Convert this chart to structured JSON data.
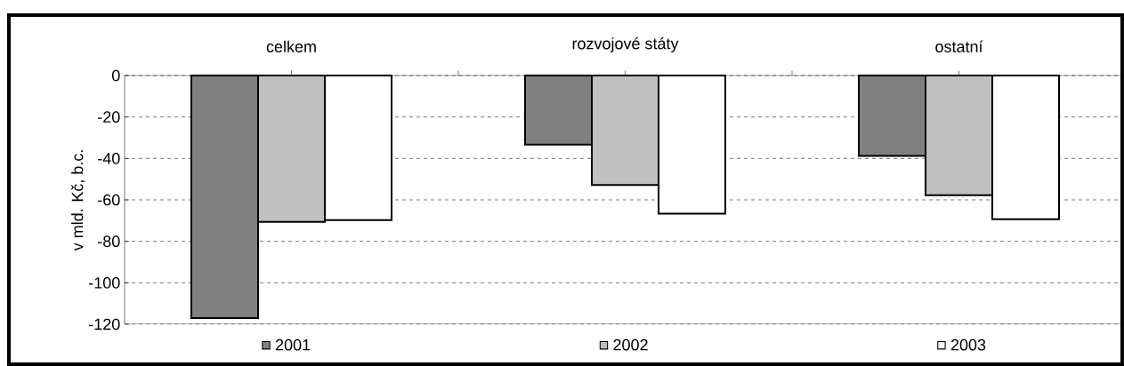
{
  "chart_data": {
    "type": "bar",
    "ylabel": "v mld. Kč, b.c.",
    "categories": [
      "celkem",
      "rozvojové státy",
      "ostatní"
    ],
    "series": [
      {
        "name": "2001",
        "color": "#808080",
        "values": [
          -117,
          -33.3,
          -38.8
        ]
      },
      {
        "name": "2002",
        "color": "#c0c0c0",
        "values": [
          -70.6,
          -52.8,
          -57.8
        ]
      },
      {
        "name": "2003",
        "color": "#ffffff",
        "values": [
          -69.7,
          -66.6,
          -69.3
        ]
      }
    ],
    "ylim": [
      -120,
      0
    ],
    "yticks": [
      -120,
      -100,
      -80,
      -60,
      -40,
      -20,
      0
    ],
    "grid": "y",
    "legend": "bottom"
  }
}
